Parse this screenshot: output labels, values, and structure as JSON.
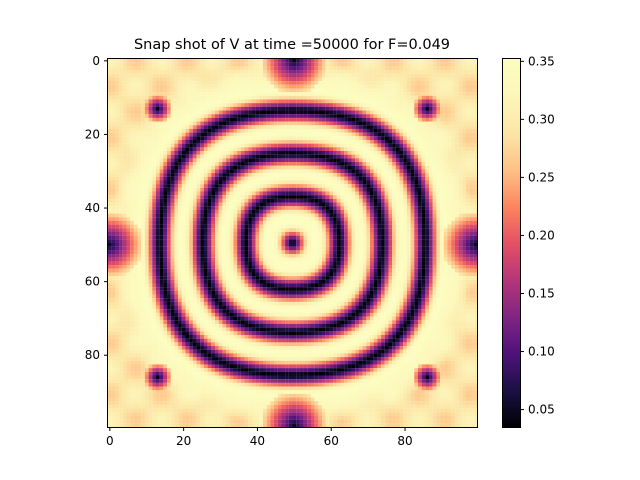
{
  "chart_data": {
    "type": "heatmap",
    "title": "Snap shot of V at time =50000 for F=0.049",
    "xlabel": "",
    "ylabel": "",
    "grid_size": 100,
    "xlim": [
      0,
      99
    ],
    "ylim": [
      99,
      0
    ],
    "x_ticks": [
      "0",
      "20",
      "40",
      "60",
      "80"
    ],
    "y_ticks": [
      "0",
      "20",
      "40",
      "60",
      "80"
    ],
    "colormap": "magma",
    "vmin": 0.035,
    "vmax": 0.352,
    "colorbar_ticks": [
      "0.05",
      "0.10",
      "0.15",
      "0.20",
      "0.25",
      "0.30",
      "0.35"
    ],
    "field": {
      "description_of_shape": "concentric rings centered at (49.5, 49.5)",
      "center": [
        49.5,
        49.5
      ],
      "ring_minima_radius": [
        0,
        13,
        25,
        37
      ],
      "corner_spot_minima": [
        [
          13,
          13
        ],
        [
          13,
          86
        ],
        [
          86,
          13
        ],
        [
          86,
          86
        ]
      ],
      "edge_minima": [
        [
          0,
          50
        ],
        [
          99,
          50
        ],
        [
          50,
          0
        ],
        [
          50,
          99
        ]
      ],
      "background_value": 0.29
    }
  }
}
